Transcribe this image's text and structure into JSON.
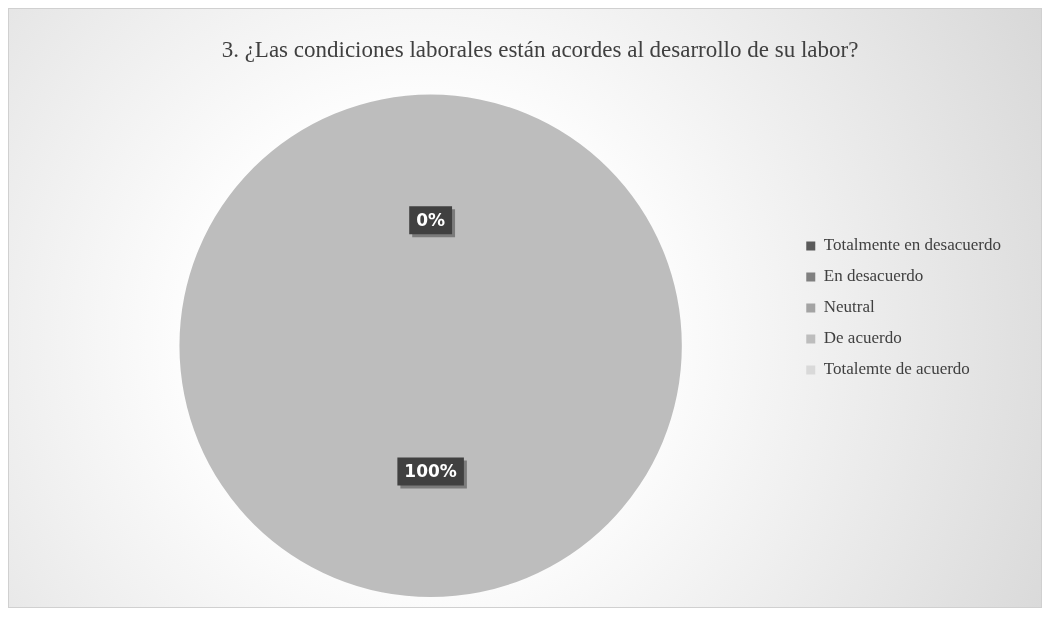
{
  "chart_data": {
    "type": "pie",
    "title": "3. ¿Las condiciones laborales están acordes al desarrollo de su labor?",
    "categories": [
      "Totalmente en desacuerdo",
      "En desacuerdo",
      "Neutral",
      "De acuerdo",
      "Totalemte de acuerdo"
    ],
    "values": [
      0,
      0,
      0,
      100,
      0
    ],
    "colors": [
      "#5a5a5a",
      "#808080",
      "#a3a3a3",
      "#bdbdbd",
      "#d9d9d9"
    ],
    "value_labels": [
      "0%",
      null,
      null,
      "100%",
      null
    ],
    "legend": "right"
  }
}
